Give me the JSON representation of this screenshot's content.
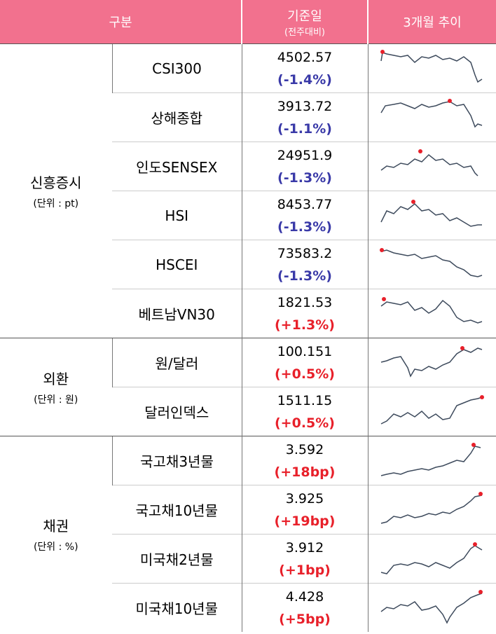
{
  "header": {
    "category": "구분",
    "base_date": "기준일",
    "base_date_sub": "(전주대비)",
    "trend": "3개월 추이"
  },
  "groups": [
    {
      "name": "신흥증시",
      "unit": "(단위 : pt)",
      "rows": [
        {
          "name": "CSI300",
          "value": "4502.57",
          "change": "(-1.4%)"
        },
        {
          "name": "상해종합",
          "value": "3913.72",
          "change": "(-1.1%)"
        },
        {
          "name": "인도SENSEX",
          "value": "24951.9",
          "change": "(-1.3%)"
        },
        {
          "name": "HSI",
          "value": "8453.77",
          "change": "(-1.3%)"
        },
        {
          "name": "HSCEI",
          "value": "73583.2",
          "change": "(-1.3%)"
        },
        {
          "name": "베트남VN30",
          "value": "1821.53",
          "change": "(+1.3%)"
        }
      ]
    },
    {
      "name": "외환",
      "unit": "(단위 : 원)",
      "rows": [
        {
          "name": "원/달러",
          "value": "100.151",
          "change": "(+0.5%)"
        },
        {
          "name": "달러인덱스",
          "value": "1511.15",
          "change": "(+0.5%)"
        }
      ]
    },
    {
      "name": "채권",
      "unit": "(단위 : %)",
      "rows": [
        {
          "name": "국고채3년물",
          "value": "3.592",
          "change": "(+18bp)"
        },
        {
          "name": "국고채10년물",
          "value": "3.925",
          "change": "(+19bp)"
        },
        {
          "name": "미국채2년물",
          "value": "3.912",
          "change": "(+1bp)"
        },
        {
          "name": "미국채10년물",
          "value": "4.428",
          "change": "(+5bp)"
        }
      ]
    }
  ]
}
